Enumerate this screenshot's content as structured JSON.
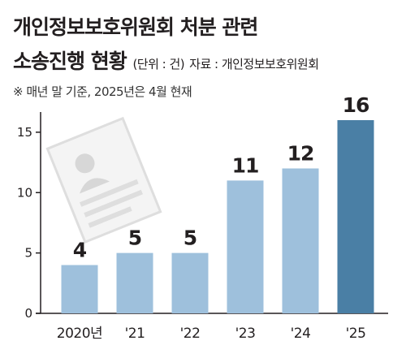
{
  "header": {
    "title_line1": "개인정보보호위원회 처분 관련",
    "title_line2": "소송진행 현황",
    "unit": "(단위 : 건)",
    "source": "자료 : 개인정보보호위원회",
    "note": "※ 매년 말 기준, 2025년은 4월 현재"
  },
  "icon": "document-person-icon",
  "colors": {
    "bar": "#9ec0dc",
    "bar_highlight": "#4a7fa5",
    "axis": "#231f20"
  },
  "chart_data": {
    "type": "bar",
    "categories": [
      "2020년",
      "'21",
      "'22",
      "'23",
      "'24",
      "'25"
    ],
    "values": [
      4,
      5,
      5,
      11,
      12,
      16
    ],
    "data_labels": [
      "4",
      "5",
      "5",
      "11",
      "12",
      "16"
    ],
    "yticks": [
      0,
      5,
      10,
      15
    ],
    "ylim": [
      0,
      16
    ],
    "highlight_index": 5,
    "grid": false
  }
}
